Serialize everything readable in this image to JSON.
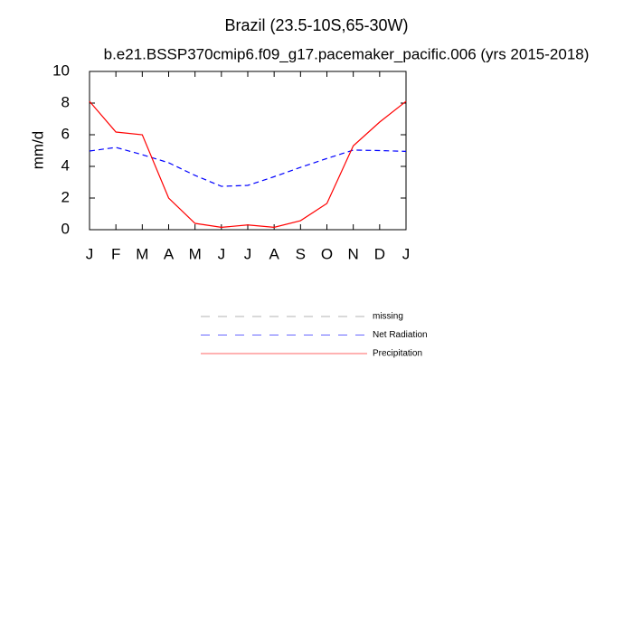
{
  "chart_data": {
    "type": "line",
    "title": "Brazil (23.5-10S,65-30W)",
    "subtitle": "b.e21.BSSP370cmip6.f09_g17.pacemaker_pacific.006 (yrs 2015-2018)",
    "y_label": "mm/d",
    "categories": [
      "J",
      "F",
      "M",
      "A",
      "M",
      "J",
      "J",
      "A",
      "S",
      "O",
      "N",
      "D",
      "J"
    ],
    "series": [
      {
        "name": "missing",
        "color": "#808080",
        "dashed": true,
        "values": [
          null,
          null,
          null,
          null,
          null,
          null,
          null,
          null,
          null,
          null,
          null,
          null,
          null
        ]
      },
      {
        "name": "Net Radiation",
        "color": "#0000ff",
        "dashed": true,
        "values": [
          4.97,
          5.2,
          4.74,
          4.23,
          3.43,
          2.74,
          2.8,
          3.35,
          3.94,
          4.5,
          5.03,
          5.0,
          4.95
        ]
      },
      {
        "name": "Precipitation",
        "color": "#ff0000",
        "dashed": false,
        "values": [
          8.11,
          6.17,
          6.0,
          2.0,
          0.4,
          0.15,
          0.3,
          0.15,
          0.57,
          1.66,
          5.3,
          6.8,
          8.11
        ]
      }
    ],
    "ylim": [
      0,
      10
    ],
    "yticks": [
      0,
      2,
      4,
      6,
      8,
      10
    ],
    "grid": false
  }
}
